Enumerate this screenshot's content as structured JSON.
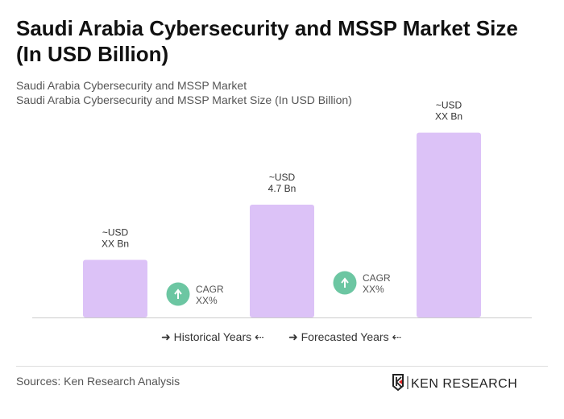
{
  "title": "Saudi Arabia Cybersecurity and MSSP Market Size (In USD Billion)",
  "subtitle1": "Saudi Arabia Cybersecurity and MSSP Market",
  "subtitle2": "Saudi Arabia Cybersecurity and MSSP Market Size (In USD Billion)",
  "chart_data": {
    "type": "bar",
    "categories": [
      "",
      "",
      ""
    ],
    "values": [
      2.4,
      4.7,
      7.7
    ],
    "data_labels": [
      [
        "~USD",
        "XX Bn"
      ],
      [
        "~USD",
        "4.7 Bn"
      ],
      [
        "~USD",
        "XX Bn"
      ]
    ],
    "bar_color": "#dcc2f7",
    "grid": false,
    "cagr": [
      {
        "label": "CAGR",
        "value": "XX%"
      },
      {
        "label": "CAGR",
        "value": "XX%"
      }
    ],
    "cagr_color": "#6cc6a2"
  },
  "legend": {
    "historical": "Historical Years",
    "forecasted": "Forecasted Years"
  },
  "sources": "Sources: Ken Research Analysis",
  "logo_text": "KEN RESEARCH"
}
